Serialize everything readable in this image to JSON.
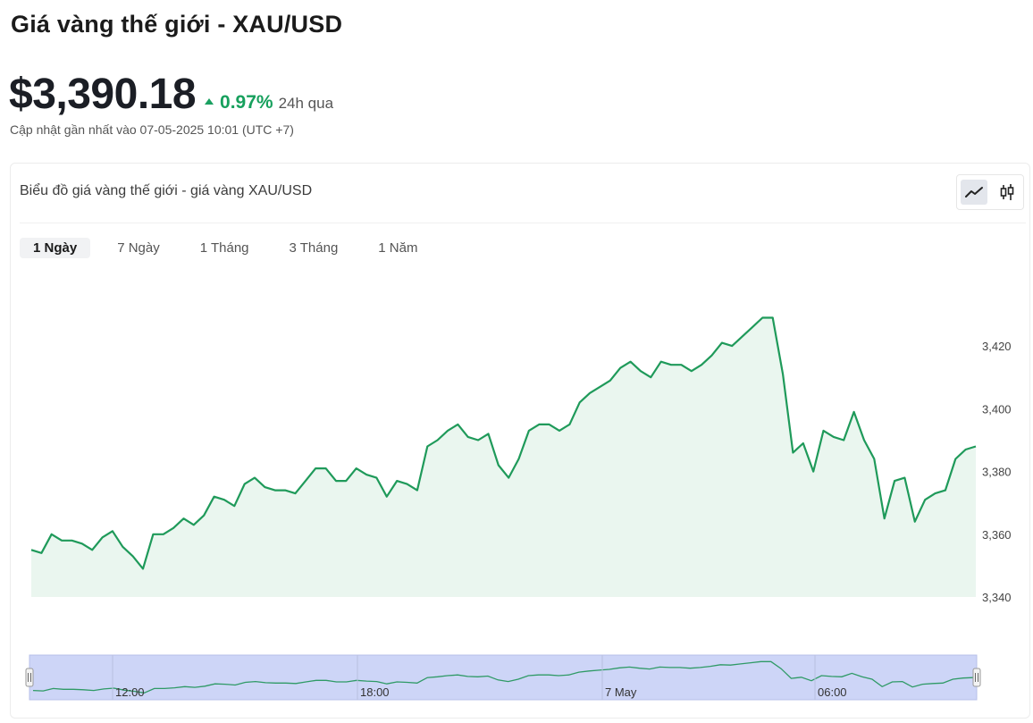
{
  "header": {
    "title": "Giá vàng thế giới - XAU/USD",
    "price": "$3,390.18",
    "change_pct": "0.97%",
    "change_period": "24h qua",
    "updated": "Cập nhật gần nhất vào 07-05-2025 10:01 (UTC +7)"
  },
  "colors": {
    "up": "#17a05d",
    "line": "#1f9a5a",
    "area": "#eaf6ef",
    "navigator": "#cdd5f7"
  },
  "card": {
    "title": "Biểu đồ giá vàng thế giới - giá vàng XAU/USD",
    "icons": {
      "line": "line-chart-icon",
      "candle": "candlestick-icon"
    }
  },
  "tabs": [
    {
      "label": "1 Ngày",
      "active": true
    },
    {
      "label": "7 Ngày",
      "active": false
    },
    {
      "label": "1 Tháng",
      "active": false
    },
    {
      "label": "3 Tháng",
      "active": false
    },
    {
      "label": "1 Năm",
      "active": false
    }
  ],
  "chart_data": {
    "type": "area",
    "series": [
      {
        "values": [
          3355,
          3354,
          3360,
          3358,
          3358,
          3357,
          3355,
          3359,
          3361,
          3356,
          3353,
          3349,
          3360,
          3360,
          3362,
          3365,
          3363,
          3366,
          3372,
          3371,
          3369,
          3376,
          3378,
          3375,
          3374,
          3374,
          3373,
          3377,
          3381,
          3381,
          3377,
          3377,
          3381,
          3379,
          3378,
          3372,
          3377,
          3376,
          3374,
          3388,
          3390,
          3393,
          3395,
          3391,
          3390,
          3392,
          3382,
          3378,
          3384,
          3393,
          3395,
          3395,
          3393,
          3395,
          3402,
          3405,
          3407,
          3409,
          3413,
          3415,
          3412,
          3410,
          3415,
          3414,
          3414,
          3412,
          3414,
          3417,
          3421,
          3420,
          3423,
          3426,
          3429,
          3429,
          3411,
          3386,
          3389,
          3380,
          3393,
          3391,
          3390,
          3399,
          3390,
          3384,
          3365,
          3377,
          3378,
          3364,
          3371,
          3373,
          3374,
          3384,
          3387,
          3388
        ]
      }
    ],
    "yticks": [
      "3,420",
      "3,400",
      "3,380",
      "3,360",
      "3,340"
    ],
    "ylim": [
      3340,
      3432
    ],
    "navigator_labels": [
      "12:00",
      "18:00",
      "7 May",
      "06:00"
    ],
    "grid": false
  }
}
